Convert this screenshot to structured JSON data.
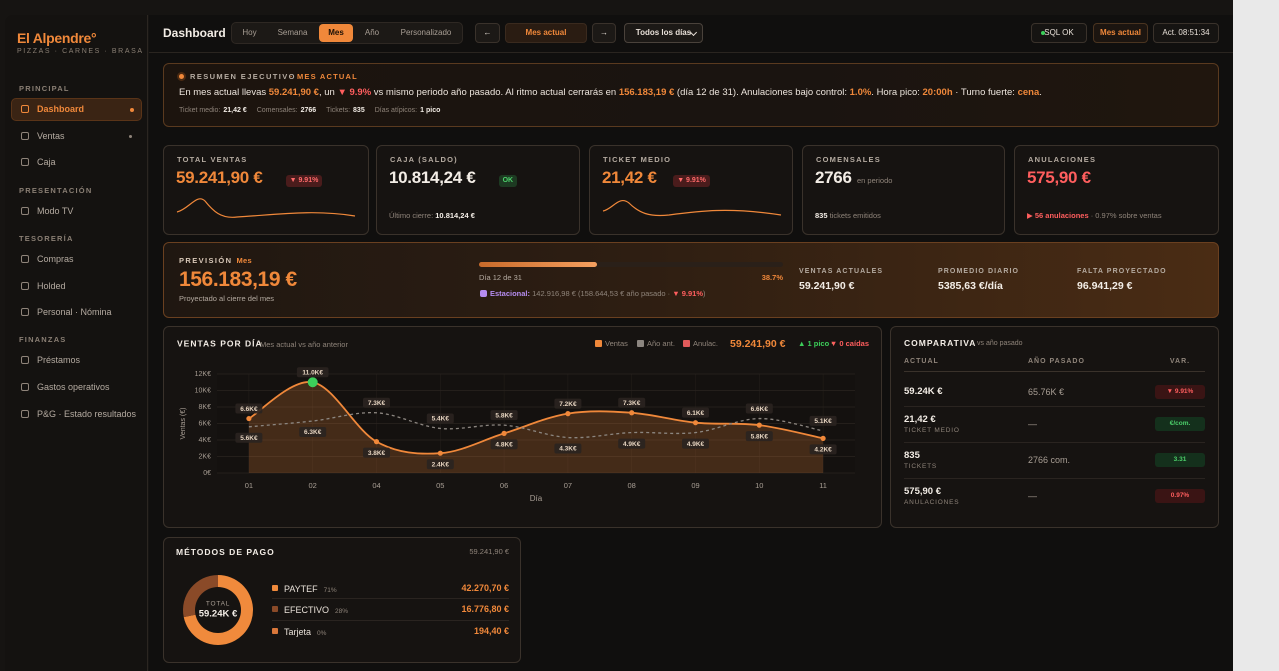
{
  "sidebar": {
    "brand": "El Alpendre°",
    "tagline": "PIZZAS · CARNES · BRASA",
    "active": "Dashboard",
    "sections": [
      {
        "title": "PRINCIPAL",
        "items": [
          "Dashboard",
          "Ventas",
          "Caja"
        ]
      },
      {
        "title": "PRESENTACIÓN",
        "items": [
          "Modo TV"
        ]
      },
      {
        "title": "TESORERÍA",
        "items": [
          "Compras",
          "Holded",
          "Personal · Nómina"
        ]
      },
      {
        "title": "FINANZAS",
        "items": [
          "Préstamos",
          "Gastos operativos",
          "P&G · Estado resultados"
        ]
      }
    ]
  },
  "topbar": {
    "title": "Dashboard",
    "tabs": [
      "Hoy",
      "Semana",
      "Mes",
      "Año",
      "Personalizado"
    ],
    "active_tab": "Mes",
    "prev": "←",
    "period": "Mes actual",
    "next": "→",
    "day_filter": "Todos los días",
    "status": "SQL OK",
    "period_badge": "Mes actual",
    "updated": "Act. 08:51:34"
  },
  "summary": {
    "label": "RESUMEN EJECUTIVO",
    "tag": "· MES ACTUAL",
    "segments": [
      {
        "text": "En mes actual llevas ",
        "style": "plain"
      },
      {
        "text": "59.241,90 €",
        "style": "accent"
      },
      {
        "text": ", un ",
        "style": "plain"
      },
      {
        "text": "▼ 9.9%",
        "style": "down"
      },
      {
        "text": " vs mismo periodo año pasado. Al ritmo actual cerrarás en ",
        "style": "plain"
      },
      {
        "text": "156.183,19 €",
        "style": "accent"
      },
      {
        "text": " (día 12 de 31). Anulaciones bajo control: ",
        "style": "plain"
      },
      {
        "text": "1.0%",
        "style": "accent"
      },
      {
        "text": ". Hora pico: ",
        "style": "plain"
      },
      {
        "text": "20:00h",
        "style": "accent"
      },
      {
        "text": " · Turno fuerte: ",
        "style": "plain"
      },
      {
        "text": "cena",
        "style": "accent"
      },
      {
        "text": ".",
        "style": "plain"
      }
    ],
    "meta": [
      {
        "label": "Ticket medio:",
        "value": "21,42 €"
      },
      {
        "label": "Comensales:",
        "value": "2766"
      },
      {
        "label": "Tickets:",
        "value": "835"
      },
      {
        "label": "Días atípicos:",
        "value": "1 pico"
      }
    ]
  },
  "kpis": [
    {
      "label": "TOTAL VENTAS",
      "value": "59.241,90 €",
      "value_style": "accent",
      "badge": "▼ 9.91%",
      "badge_style": "down",
      "spark": true
    },
    {
      "label": "CAJA (SALDO)",
      "value": "10.814,24 €",
      "value_style": "strong",
      "badge": "OK",
      "badge_style": "up",
      "foot": [
        {
          "text": "Último cierre: ",
          "style": "muted"
        },
        {
          "text": "10.814,24 €",
          "style": "strong"
        }
      ]
    },
    {
      "label": "TICKET MEDIO",
      "value": "21,42 €",
      "value_style": "accent",
      "badge": "▼ 9.91%",
      "badge_style": "down",
      "spark": true
    },
    {
      "label": "COMENSALES",
      "value": "2766",
      "value_style": "strong",
      "suffix": "en periodo",
      "foot": [
        {
          "text": "835",
          "style": "strong"
        },
        {
          "text": " tickets emitidos",
          "style": "muted"
        }
      ]
    },
    {
      "label": "ANULACIONES",
      "value": "575,90 €",
      "value_style": "down",
      "foot": [
        {
          "text": "▶ 56 anulaciones",
          "style": "down"
        },
        {
          "text": " · 0.97% sobre ventas",
          "style": "muted"
        }
      ]
    }
  ],
  "forecast": {
    "label": "PREVISIÓN",
    "period": "Mes",
    "value": "156.183,19 €",
    "note": "Proyectado al cierre del mes",
    "progress_label": "Día 12 de 31",
    "progress": "38.7%",
    "seasonal": [
      {
        "text": "Estacional:",
        "style": "purple"
      },
      {
        "text": " 142.916,98 € (158.644,53 € año pasado · ",
        "style": "muted"
      },
      {
        "text": "▼ 9.91%",
        "style": "down"
      },
      {
        "text": ")",
        "style": "muted"
      }
    ],
    "stats": [
      {
        "label": "VENTAS ACTUALES",
        "value": "59.241,90 €"
      },
      {
        "label": "PROMEDIO DIARIO",
        "value": "5385,63 €/día"
      },
      {
        "label": "FALTA PROYECTADO",
        "value": "96.941,29 €"
      }
    ]
  },
  "chart_data": [
    {
      "type": "line",
      "title": "VENTAS POR DÍA",
      "subtitle": "Mes actual vs año anterior",
      "xlabel": "Día",
      "ylabel": "Ventas (€)",
      "categories": [
        "01",
        "02",
        "04",
        "05",
        "06",
        "07",
        "08",
        "09",
        "10",
        "11"
      ],
      "series": [
        {
          "name": "Ventas",
          "color": "#f0883a",
          "area": true,
          "dots": true,
          "values": [
            6600,
            11000,
            3800,
            2400,
            4800,
            7200,
            7300,
            6100,
            5800,
            4200
          ],
          "value_labels": [
            "6.6K€",
            "11.0K€",
            "3.8K€",
            "2.4K€",
            "4.8K€",
            "7.2K€",
            "7.3K€",
            "6.1K€",
            "5.8K€",
            "4.2K€"
          ]
        },
        {
          "name": "Año ant.",
          "color": "#8c8680",
          "dashed": true,
          "values": [
            5600,
            6300,
            7300,
            5400,
            5800,
            4300,
            4900,
            4900,
            6600,
            5100
          ],
          "value_labels": [
            "5.6K€",
            "6.3K€",
            "7.3K€",
            "5.4K€",
            "5.8K€",
            "4.3K€",
            "4.9K€",
            "4.9K€",
            "6.6K€",
            "5.1K€"
          ]
        },
        {
          "name": "Anulac.",
          "color": "#e05a5a",
          "values": [
            null,
            null,
            null,
            null,
            null,
            null,
            null,
            null,
            null,
            null
          ]
        }
      ],
      "peak_color": "#3ccf5a",
      "ylim": [
        0,
        12000
      ],
      "yticks": [
        {
          "value": 0,
          "label": "0€"
        },
        {
          "value": 2000,
          "label": "2K€"
        },
        {
          "value": 4000,
          "label": "4K€"
        },
        {
          "value": 6000,
          "label": "6K€"
        },
        {
          "value": 8000,
          "label": "8K€"
        },
        {
          "value": 10000,
          "label": "10K€"
        },
        {
          "value": 12000,
          "label": "12K€"
        }
      ],
      "grid": true,
      "annotations": {
        "total": "59.241,90 €",
        "peaks": "▲ 1 pico ·",
        "drops": "▼ 0 caídas"
      }
    },
    {
      "type": "pie",
      "title": "MÉTODOS DE PAGO",
      "categories": [
        "PAYTEF",
        "EFECTIVO",
        "Tarjeta"
      ],
      "values": [
        71,
        28,
        0
      ],
      "value_labels": [
        "71%",
        "28%",
        "0%"
      ],
      "colors": [
        "#f08a3c",
        "#8a4a28",
        "#d9773a"
      ],
      "donut": true
    }
  ],
  "payments": {
    "total": "59.241,90 €",
    "center_label": "TOTAL",
    "center_value": "59.24K €",
    "amounts": [
      "42.270,70 €",
      "16.776,80 €",
      "194,40 €"
    ]
  },
  "comparison": {
    "title": "COMPARATIVA",
    "subtitle": "vs año pasado",
    "headers": [
      "ACTUAL",
      "AÑO PASADO",
      "VAR."
    ],
    "rows": [
      {
        "actual": "59.24K €",
        "previous": "65.76K €",
        "variation": "▼ 9.91%",
        "tone": "down"
      },
      {
        "actual": "21,42 €",
        "caption": "TICKET MEDIO",
        "previous": "—",
        "variation": "€/com.",
        "tone": "up"
      },
      {
        "actual": "835",
        "caption": "TICKETS",
        "previous": "2766 com.",
        "variation": "3.31",
        "tone": "up"
      },
      {
        "actual": "575,90 €",
        "caption": "ANULACIONES",
        "previous": "—",
        "variation": "0.97%",
        "tone": "down"
      }
    ]
  }
}
